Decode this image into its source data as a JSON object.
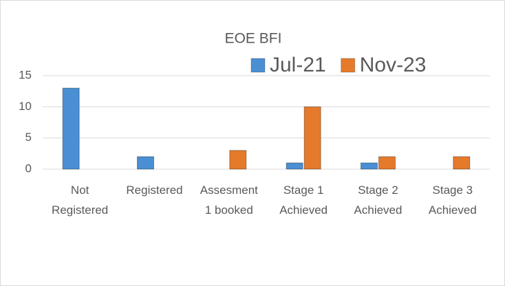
{
  "chart_data": {
    "type": "bar",
    "title": "EOE BFI",
    "categories": [
      "Not Registered",
      "Registered",
      "Assesment 1 booked",
      "Stage 1 Achieved",
      "Stage 2 Achieved",
      "Stage 3 Achieved"
    ],
    "series": [
      {
        "name": "Jul-21",
        "color": "#4a8fd3",
        "values": [
          13,
          2,
          0,
          1,
          1,
          0
        ]
      },
      {
        "name": "Nov-23",
        "color": "#e57a2b",
        "values": [
          0,
          0,
          3,
          10,
          2,
          2
        ]
      }
    ],
    "ylim": [
      0,
      15
    ],
    "yticks": [
      0,
      5,
      10,
      15
    ],
    "grid": true,
    "legend": "top-right"
  }
}
